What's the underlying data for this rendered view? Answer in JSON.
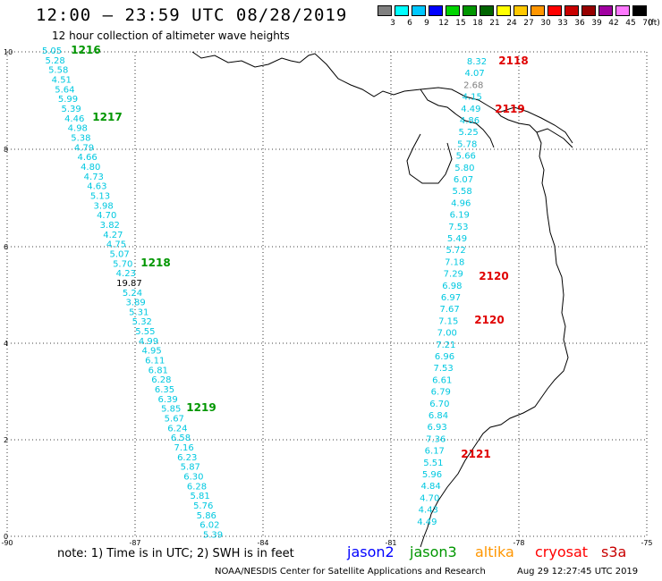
{
  "header": {
    "title": "12:00 – 23:59 UTC 08/28/2019",
    "subtitle": "12 hour collection of altimeter wave heights"
  },
  "legend": {
    "unit": "(ft)",
    "items": [
      {
        "label": "3",
        "color": "#808080"
      },
      {
        "label": "6",
        "color": "#00ffff"
      },
      {
        "label": "9",
        "color": "#00c8ff"
      },
      {
        "label": "12",
        "color": "#0000ff"
      },
      {
        "label": "15",
        "color": "#00d400"
      },
      {
        "label": "18",
        "color": "#009600"
      },
      {
        "label": "21",
        "color": "#006400"
      },
      {
        "label": "24",
        "color": "#ffff00"
      },
      {
        "label": "27",
        "color": "#ffc800"
      },
      {
        "label": "30",
        "color": "#ff9600"
      },
      {
        "label": "33",
        "color": "#ff0000"
      },
      {
        "label": "36",
        "color": "#c80000"
      },
      {
        "label": "39",
        "color": "#960000"
      },
      {
        "label": "42",
        "color": "#a000a0"
      },
      {
        "label": "45",
        "color": "#ff78ff"
      },
      {
        "label": "70",
        "color": "#000000"
      }
    ]
  },
  "axes": {
    "x_ticks": [
      "-90",
      "-87",
      "-84",
      "-81",
      "-78",
      "-75"
    ],
    "y_ticks": [
      "10",
      "8",
      "6",
      "4",
      "2",
      "0"
    ]
  },
  "track_a": [
    "5.05",
    "5.28",
    "5.58",
    "4.51",
    "5.64",
    "5.99",
    "5.39",
    "4.46",
    "4.98",
    "5.38",
    "4.79",
    "4.66",
    "4.80",
    "4.73",
    "4.63",
    "5.13",
    "3.98",
    "4.70",
    "3.82",
    "4.27",
    "4.75",
    "5.07",
    "5.70",
    "4.23",
    "19.87",
    "5.24",
    "3.89",
    "5.31",
    "5.32",
    "5.55",
    "4.99",
    "4.95",
    "6.11",
    "6.81",
    "6.28",
    "6.35",
    "6.39",
    "5.85",
    "5.67",
    "6.24",
    "6.58",
    "7.16",
    "6.23",
    "5.87",
    "6.30",
    "6.28",
    "5.81",
    "5.76",
    "5.86",
    "6.02",
    "5.39"
  ],
  "track_b": [
    "8.32",
    "4.07",
    "2.68",
    "4.15",
    "4.49",
    "4.86",
    "5.25",
    "5.78",
    "5.66",
    "5.80",
    "6.07",
    "5.58",
    "4.96",
    "6.19",
    "7.53",
    "5.49",
    "5.72",
    "7.18",
    "7.29",
    "6.98",
    "6.97",
    "7.67",
    "7.15",
    "7.00",
    "7.21",
    "6.96",
    "7.53",
    "6.61",
    "6.79",
    "6.70",
    "6.84",
    "6.93",
    "7.36",
    "6.17",
    "5.51",
    "5.96",
    "4.84",
    "4.70",
    "4.43",
    "4.49"
  ],
  "passes": [
    "1216",
    "1217",
    "1218",
    "1219",
    "2118",
    "2119",
    "2120",
    "2120",
    "2121"
  ],
  "footer": {
    "note": "note: 1) Time is in UTC; 2) SWH is in feet",
    "satellites": [
      {
        "name": "jason2",
        "color": "#0000ff"
      },
      {
        "name": "jason3",
        "color": "#009600"
      },
      {
        "name": "altika",
        "color": "#ff9600"
      },
      {
        "name": "cryosat",
        "color": "#ff0000"
      },
      {
        "name": "s3a",
        "color": "#c80000"
      }
    ],
    "credit": "NOAA/NESDIS Center for Satellite Applications and Research",
    "stamp": "Aug 29 12:27:45 UTC 2019"
  }
}
